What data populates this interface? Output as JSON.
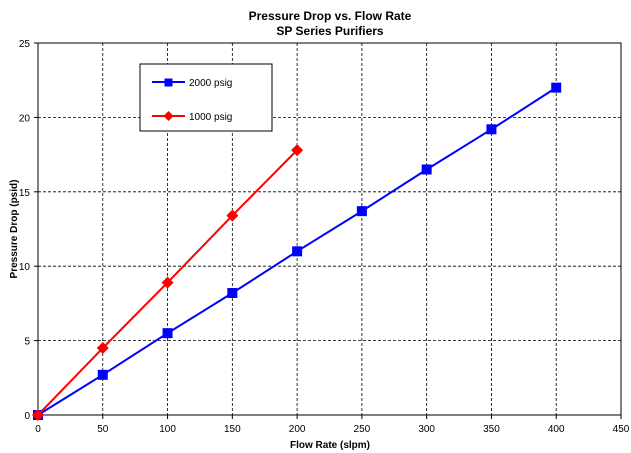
{
  "chart_data": {
    "type": "line",
    "title": "Pressure Drop vs. Flow Rate",
    "subtitle": "SP Series Purifiers",
    "xlabel": "Flow Rate (slpm)",
    "ylabel": "Pressure Drop (psid)",
    "xlim": [
      0,
      450
    ],
    "ylim": [
      0,
      25
    ],
    "xticks": [
      0,
      50,
      100,
      150,
      200,
      250,
      300,
      350,
      400,
      450
    ],
    "yticks": [
      0,
      5,
      10,
      15,
      20,
      25
    ],
    "grid": true,
    "legend_position": "top-left",
    "series": [
      {
        "name": "2000 psig",
        "color": "#0000ff",
        "marker": "square",
        "x": [
          0,
          50,
          100,
          150,
          200,
          250,
          300,
          350,
          400
        ],
        "y": [
          0,
          2.7,
          5.5,
          8.2,
          11.0,
          13.7,
          16.5,
          19.2,
          22.0
        ]
      },
      {
        "name": "1000 psig",
        "color": "#ff0000",
        "marker": "diamond",
        "x": [
          0,
          50,
          100,
          150,
          200
        ],
        "y": [
          0,
          4.5,
          8.9,
          13.4,
          17.8
        ]
      }
    ]
  }
}
